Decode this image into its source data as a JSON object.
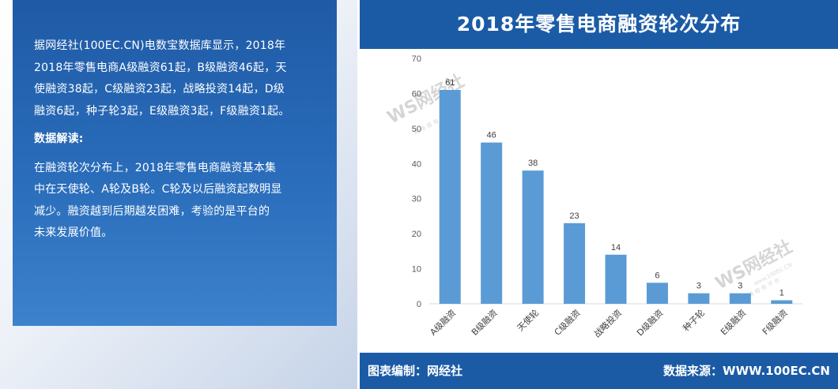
{
  "article": {
    "summary": "据网经社（100EC.CN）电数宝数据库显示，2018年2018年零售电商A级融资61起，B级融资46起，天使融资38起，C级融资23起，战略投资14起，D级融资6起，种子轮3起，E级融资3起，F级融资1起。",
    "summary_lines": [
      "据网经社(100EC.CN)电数宝数据库显示，2018年",
      "2018年零售电商A级融资61起，B级融资46起，天",
      "使融资38起，C级融资23起，战略投资14起，D级",
      "融资6起，种子轮3起，E级融资3起，F级融资1起。"
    ],
    "heading": "数据解读:",
    "analysis_lines": [
      "在融资轮次分布上，2018年零售电商融资基本集",
      "中在天使轮、A轮及B轮。C轮及以后融资起数明显",
      "减少。融资越到后期越发困难，考验的是平台的",
      "未来发展价值。"
    ]
  },
  "footer": {
    "left": "图表编制：网经社",
    "right": "数据来源：WWW.100EC.CN"
  },
  "watermark": {
    "logo": "WS网经社",
    "subtext": "网 络 服 务 平 台",
    "url": "www.100EC.CN"
  },
  "colors": {
    "bar": "#5b9bd5",
    "header": "#1b5ba6",
    "panel": "#2a6dbb"
  },
  "chart_data": {
    "type": "bar",
    "title": "2018年零售电商融资轮次分布",
    "categories": [
      "A级融资",
      "B级融资",
      "天使轮",
      "C级融资",
      "战略投资",
      "D级融资",
      "种子轮",
      "E级融资",
      "F级融资"
    ],
    "values": [
      61,
      46,
      38,
      23,
      14,
      6,
      3,
      3,
      1
    ],
    "ylim": [
      0,
      70
    ],
    "yticks": [
      0,
      10,
      20,
      30,
      40,
      50,
      60,
      70
    ],
    "xlabel": "",
    "ylabel": "",
    "grid": false,
    "data_labels": true
  }
}
